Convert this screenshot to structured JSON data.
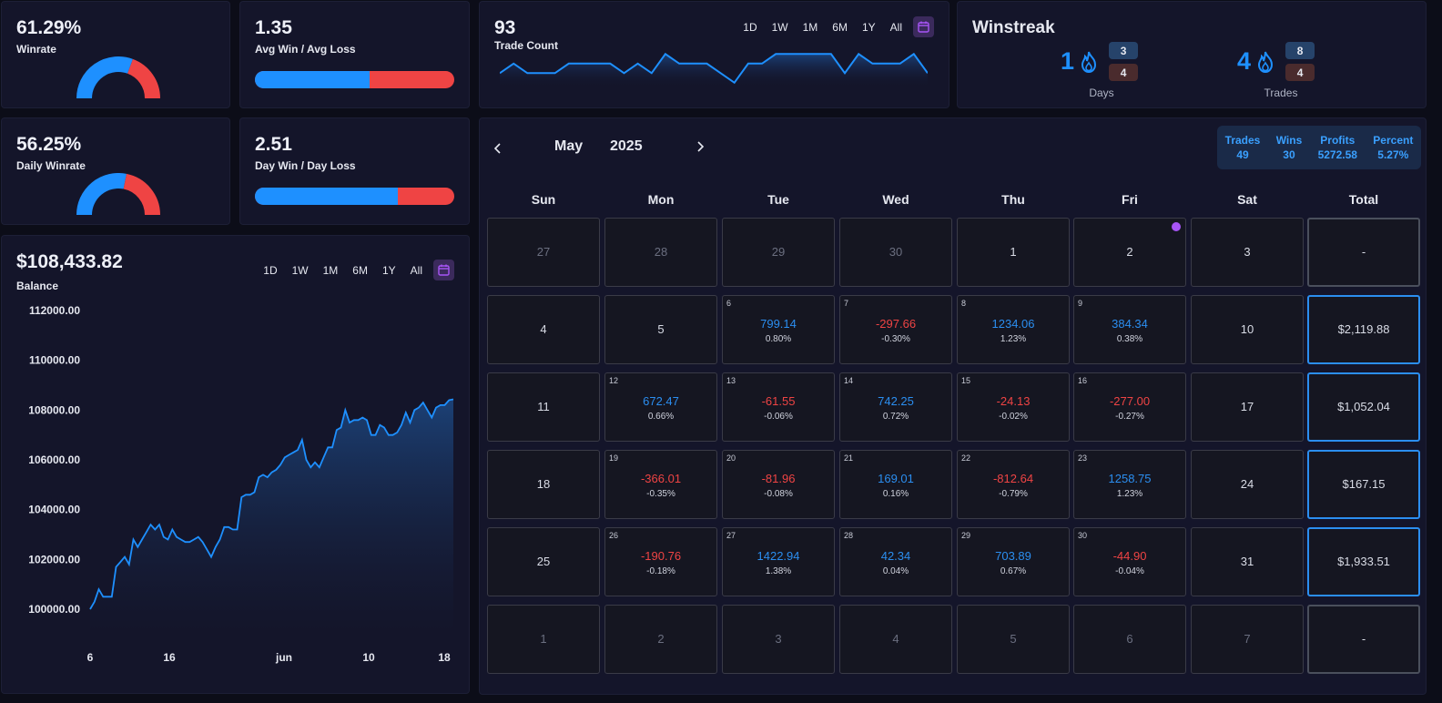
{
  "winrate": {
    "value": "61.29%",
    "label": "Winrate",
    "fraction": 0.6129
  },
  "avg_ratio": {
    "value": "1.35",
    "label": "Avg Win / Avg Loss",
    "fraction": 0.574
  },
  "daily_winrate": {
    "value": "56.25%",
    "label": "Daily Winrate",
    "fraction": 0.5625
  },
  "day_ratio": {
    "value": "2.51",
    "label": "Day Win / Day Loss",
    "fraction": 0.715
  },
  "trade_count": {
    "value": "93",
    "label": "Trade Count",
    "timeframes": [
      "1D",
      "1W",
      "1M",
      "6M",
      "1Y",
      "All"
    ],
    "series": [
      3,
      4,
      3,
      3,
      3,
      4,
      4,
      4,
      4,
      3,
      4,
      3,
      5,
      4,
      4,
      4,
      3,
      2,
      4,
      4,
      5,
      5,
      5,
      5,
      5,
      3,
      5,
      4,
      4,
      4,
      5,
      3
    ]
  },
  "winstreak": {
    "title": "Winstreak",
    "days": {
      "value": "1",
      "wins": "3",
      "losses": "4",
      "label": "Days"
    },
    "trades": {
      "value": "4",
      "wins": "8",
      "losses": "4",
      "label": "Trades"
    }
  },
  "balance": {
    "value": "$108,433.82",
    "label": "Balance",
    "timeframes": [
      "1D",
      "1W",
      "1M",
      "6M",
      "1Y",
      "All"
    ],
    "y_ticks": [
      "112000.00",
      "110000.00",
      "108000.00",
      "106000.00",
      "104000.00",
      "102000.00",
      "100000.00"
    ],
    "x_ticks": [
      "6",
      "16",
      "jun",
      "10",
      "18"
    ]
  },
  "chart_data": {
    "type": "area",
    "ylim": [
      100000,
      112000
    ],
    "y": [
      100000,
      100300,
      100800,
      100500,
      100500,
      100500,
      101700,
      101900,
      102100,
      101800,
      102800,
      102500,
      102800,
      103100,
      103400,
      103200,
      103400,
      102900,
      102800,
      103200,
      102900,
      102800,
      102700,
      102700,
      102800,
      102900,
      102700,
      102400,
      102100,
      102500,
      102800,
      103300,
      103300,
      103200,
      103200,
      104500,
      104600,
      104600,
      104700,
      105300,
      105400,
      105300,
      105500,
      105600,
      105800,
      106100,
      106200,
      106300,
      106400,
      106800,
      106000,
      105700,
      105900,
      105700,
      106100,
      106500,
      106500,
      107200,
      107300,
      108000,
      107500,
      107600,
      107600,
      107700,
      107600,
      107000,
      107000,
      107400,
      107300,
      107000,
      107000,
      107100,
      107400,
      107900,
      107500,
      108000,
      108100,
      108300,
      108000,
      107700,
      108100,
      108200,
      108200,
      108400,
      108433
    ]
  },
  "calendar": {
    "month": "May",
    "year": "2025",
    "summary": [
      {
        "label": "Trades",
        "value": "49"
      },
      {
        "label": "Wins",
        "value": "30"
      },
      {
        "label": "Profits",
        "value": "5272.58"
      },
      {
        "label": "Percent",
        "value": "5.27%"
      }
    ],
    "dow": [
      "Sun",
      "Mon",
      "Tue",
      "Wed",
      "Thu",
      "Fri",
      "Sat",
      "Total"
    ],
    "weeks": [
      {
        "days": [
          {
            "d": "27",
            "out": true
          },
          {
            "d": "28",
            "out": true
          },
          {
            "d": "29",
            "out": true
          },
          {
            "d": "30",
            "out": true
          },
          {
            "d": "1"
          },
          {
            "d": "2",
            "dot": true
          },
          {
            "d": "3"
          }
        ],
        "total": "-"
      },
      {
        "days": [
          {
            "d": "4"
          },
          {
            "d": "5"
          },
          {
            "d": "6",
            "pnl": "799.14",
            "pct": "0.80%"
          },
          {
            "d": "7",
            "pnl": "-297.66",
            "pct": "-0.30%",
            "neg": true
          },
          {
            "d": "8",
            "pnl": "1234.06",
            "pct": "1.23%"
          },
          {
            "d": "9",
            "pnl": "384.34",
            "pct": "0.38%"
          },
          {
            "d": "10"
          }
        ],
        "total": "$2,119.88"
      },
      {
        "days": [
          {
            "d": "11"
          },
          {
            "d": "12",
            "pnl": "672.47",
            "pct": "0.66%"
          },
          {
            "d": "13",
            "pnl": "-61.55",
            "pct": "-0.06%",
            "neg": true
          },
          {
            "d": "14",
            "pnl": "742.25",
            "pct": "0.72%"
          },
          {
            "d": "15",
            "pnl": "-24.13",
            "pct": "-0.02%",
            "neg": true
          },
          {
            "d": "16",
            "pnl": "-277.00",
            "pct": "-0.27%",
            "neg": true
          },
          {
            "d": "17"
          }
        ],
        "total": "$1,052.04"
      },
      {
        "days": [
          {
            "d": "18"
          },
          {
            "d": "19",
            "pnl": "-366.01",
            "pct": "-0.35%",
            "neg": true
          },
          {
            "d": "20",
            "pnl": "-81.96",
            "pct": "-0.08%",
            "neg": true
          },
          {
            "d": "21",
            "pnl": "169.01",
            "pct": "0.16%"
          },
          {
            "d": "22",
            "pnl": "-812.64",
            "pct": "-0.79%",
            "neg": true
          },
          {
            "d": "23",
            "pnl": "1258.75",
            "pct": "1.23%"
          },
          {
            "d": "24"
          }
        ],
        "total": "$167.15"
      },
      {
        "days": [
          {
            "d": "25"
          },
          {
            "d": "26",
            "pnl": "-190.76",
            "pct": "-0.18%",
            "neg": true
          },
          {
            "d": "27",
            "pnl": "1422.94",
            "pct": "1.38%"
          },
          {
            "d": "28",
            "pnl": "42.34",
            "pct": "0.04%"
          },
          {
            "d": "29",
            "pnl": "703.89",
            "pct": "0.67%"
          },
          {
            "d": "30",
            "pnl": "-44.90",
            "pct": "-0.04%",
            "neg": true
          },
          {
            "d": "31"
          }
        ],
        "total": "$1,933.51"
      },
      {
        "days": [
          {
            "d": "1",
            "out": true
          },
          {
            "d": "2",
            "out": true
          },
          {
            "d": "3",
            "out": true
          },
          {
            "d": "4",
            "out": true
          },
          {
            "d": "5",
            "out": true
          },
          {
            "d": "6",
            "out": true
          },
          {
            "d": "7",
            "out": true
          }
        ],
        "total": "-"
      }
    ]
  },
  "colors": {
    "accent": "#1e90ff",
    "loss": "#ef4444",
    "panel": "#14152a"
  }
}
